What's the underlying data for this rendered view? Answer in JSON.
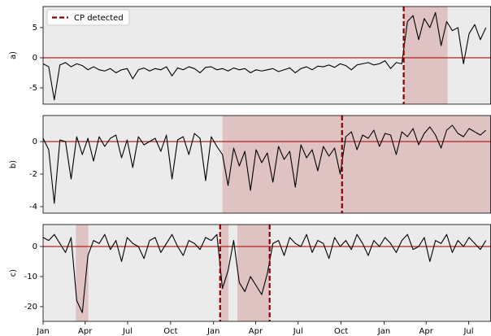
{
  "chart_data": [
    {
      "type": "line",
      "ylabel": "a)",
      "facecolor": "#ebebeb",
      "color": "#000000",
      "x": [
        0,
        12,
        24,
        36,
        48,
        60,
        72,
        84,
        96,
        108,
        120,
        132,
        144,
        156,
        168,
        180,
        192,
        204,
        216,
        228,
        240,
        252,
        264,
        276,
        288,
        300,
        312,
        324,
        336,
        348,
        360,
        372,
        384,
        396,
        408,
        420,
        432,
        444,
        456,
        468,
        480,
        492,
        504,
        516,
        528,
        540,
        552,
        564,
        576,
        588,
        600,
        612,
        624,
        636,
        648,
        660,
        672,
        684,
        696,
        708,
        720,
        732,
        744,
        756,
        768,
        780,
        792,
        804,
        816,
        828,
        840,
        852,
        864,
        876,
        888,
        900,
        912,
        924,
        936,
        948
      ],
      "values": [
        -1,
        -1.5,
        -7,
        -1.2,
        -0.8,
        -1.5,
        -1,
        -1.3,
        -2,
        -1.5,
        -2,
        -2.2,
        -1.8,
        -2.5,
        -2,
        -1.8,
        -3.5,
        -2,
        -1.7,
        -2.2,
        -1.8,
        -2,
        -1.5,
        -3,
        -1.7,
        -2,
        -1.5,
        -1.8,
        -2.5,
        -1.6,
        -1.5,
        -2,
        -1.8,
        -2.2,
        -1.7,
        -2,
        -1.8,
        -2.5,
        -2,
        -2.2,
        -2,
        -1.8,
        -2.3,
        -2,
        -1.7,
        -2.5,
        -1.8,
        -1.5,
        -2,
        -1.4,
        -1.5,
        -1.2,
        -1.6,
        -1,
        -1.3,
        -2,
        -1.2,
        -1,
        -0.8,
        -1.2,
        -1,
        -0.5,
        -1.8,
        -0.8,
        -1,
        6,
        7,
        3,
        6.5,
        5,
        7.5,
        2,
        6,
        4.5,
        5,
        -1,
        4,
        5.5,
        3,
        5
      ],
      "xlim": [
        0,
        958
      ],
      "ylim": [
        -7.7,
        8.5
      ],
      "yticks": [
        -5,
        0,
        5
      ],
      "hline": 0,
      "hline_color": "#b22222",
      "spans": [
        [
          772,
          866
        ]
      ],
      "span_color": "#dfc3c3",
      "change_points": [
        772
      ],
      "cp_color": "#8b0000",
      "legend": {
        "label": "CP detected",
        "loc": "upper left"
      }
    },
    {
      "type": "line",
      "ylabel": "b)",
      "facecolor": "#ebebeb",
      "color": "#000000",
      "x": [
        0,
        12,
        24,
        36,
        48,
        60,
        72,
        84,
        96,
        108,
        120,
        132,
        144,
        156,
        168,
        180,
        192,
        204,
        216,
        228,
        240,
        252,
        264,
        276,
        288,
        300,
        312,
        324,
        336,
        348,
        360,
        372,
        384,
        396,
        408,
        420,
        432,
        444,
        456,
        468,
        480,
        492,
        504,
        516,
        528,
        540,
        552,
        564,
        576,
        588,
        600,
        612,
        624,
        636,
        648,
        660,
        672,
        684,
        696,
        708,
        720,
        732,
        744,
        756,
        768,
        780,
        792,
        804,
        816,
        828,
        840,
        852,
        864,
        876,
        888,
        900,
        912,
        924,
        936,
        948
      ],
      "values": [
        0.2,
        -0.5,
        -3.8,
        0.1,
        0,
        -2.3,
        0.3,
        -0.8,
        0.2,
        -1.2,
        0.3,
        -0.3,
        0.2,
        0.4,
        -1,
        0.1,
        -1.6,
        0.3,
        -0.2,
        0,
        0.2,
        -0.6,
        0.4,
        -2.3,
        0.1,
        0.3,
        -0.8,
        0.5,
        0.2,
        -2.4,
        0.3,
        -0.3,
        -0.8,
        -2.7,
        -0.4,
        -1.5,
        -0.6,
        -3,
        -0.5,
        -1.3,
        -0.7,
        -2.5,
        -0.3,
        -1.1,
        -0.6,
        -2.8,
        -0.2,
        -1,
        -0.5,
        -1.8,
        -0.3,
        -0.9,
        -0.4,
        -2,
        0.3,
        0.6,
        -0.5,
        0.4,
        0.2,
        0.7,
        -0.3,
        0.5,
        0.4,
        -0.8,
        0.6,
        0.3,
        0.8,
        -0.2,
        0.5,
        0.9,
        0.4,
        -0.4,
        0.7,
        1,
        0.5,
        0.3,
        0.8,
        0.6,
        0.4,
        0.7
      ],
      "xlim": [
        0,
        958
      ],
      "ylim": [
        -4.4,
        1.6
      ],
      "yticks": [
        -4,
        -2,
        0
      ],
      "hline": 0,
      "hline_color": "#b22222",
      "spans": [
        [
          384,
          958
        ]
      ],
      "span_color": "#dfc3c3",
      "change_points": [
        640
      ],
      "cp_color": "#8b0000"
    },
    {
      "type": "line",
      "ylabel": "c)",
      "facecolor": "#ebebeb",
      "color": "#000000",
      "x": [
        0,
        12,
        24,
        36,
        48,
        60,
        72,
        84,
        96,
        108,
        120,
        132,
        144,
        156,
        168,
        180,
        192,
        204,
        216,
        228,
        240,
        252,
        264,
        276,
        288,
        300,
        312,
        324,
        336,
        348,
        360,
        372,
        384,
        396,
        408,
        420,
        432,
        444,
        456,
        468,
        480,
        492,
        504,
        516,
        528,
        540,
        552,
        564,
        576,
        588,
        600,
        612,
        624,
        636,
        648,
        660,
        672,
        684,
        696,
        708,
        720,
        732,
        744,
        756,
        768,
        780,
        792,
        804,
        816,
        828,
        840,
        852,
        864,
        876,
        888,
        900,
        912,
        924,
        936,
        948
      ],
      "values": [
        3,
        2,
        4,
        1,
        -2,
        3,
        -18,
        -22,
        -3,
        2,
        1,
        4,
        -1,
        2,
        -5,
        3,
        1,
        0,
        -4,
        2,
        3,
        -2,
        1,
        4,
        0,
        -3,
        2,
        1,
        -1,
        3,
        2,
        4,
        -14,
        -8,
        2,
        -12,
        -15,
        -10,
        -13,
        -16,
        -9,
        1,
        2,
        -3,
        3,
        1,
        0,
        4,
        -2,
        2,
        1,
        -4,
        3,
        0,
        2,
        -1,
        4,
        1,
        -3,
        2,
        0,
        3,
        1,
        -2,
        2,
        4,
        -1,
        0,
        3,
        -5,
        2,
        1,
        4,
        -2,
        2,
        0,
        3,
        1,
        -1,
        2
      ],
      "xlim": [
        0,
        958
      ],
      "ylim": [
        -24.9,
        7.3
      ],
      "yticks": [
        -20,
        -10,
        0
      ],
      "xticks": [
        {
          "value": 0,
          "label": "Jan"
        },
        {
          "value": 90,
          "label": "Apr"
        },
        {
          "value": 181,
          "label": "Jul"
        },
        {
          "value": 273,
          "label": "Oct"
        },
        {
          "value": 365,
          "label": "Jan"
        },
        {
          "value": 455,
          "label": "Apr"
        },
        {
          "value": 546,
          "label": "Jul"
        },
        {
          "value": 638,
          "label": "Oct"
        },
        {
          "value": 730,
          "label": "Jan"
        },
        {
          "value": 820,
          "label": "Apr"
        },
        {
          "value": 911,
          "label": "Jul"
        }
      ],
      "hline": 0,
      "hline_color": "#b22222",
      "spans": [
        [
          70,
          97
        ],
        [
          379,
          397
        ],
        [
          416,
          485
        ]
      ],
      "span_color": "#dfc3c3",
      "change_points": [
        379,
        485
      ],
      "cp_color": "#8b0000"
    }
  ]
}
